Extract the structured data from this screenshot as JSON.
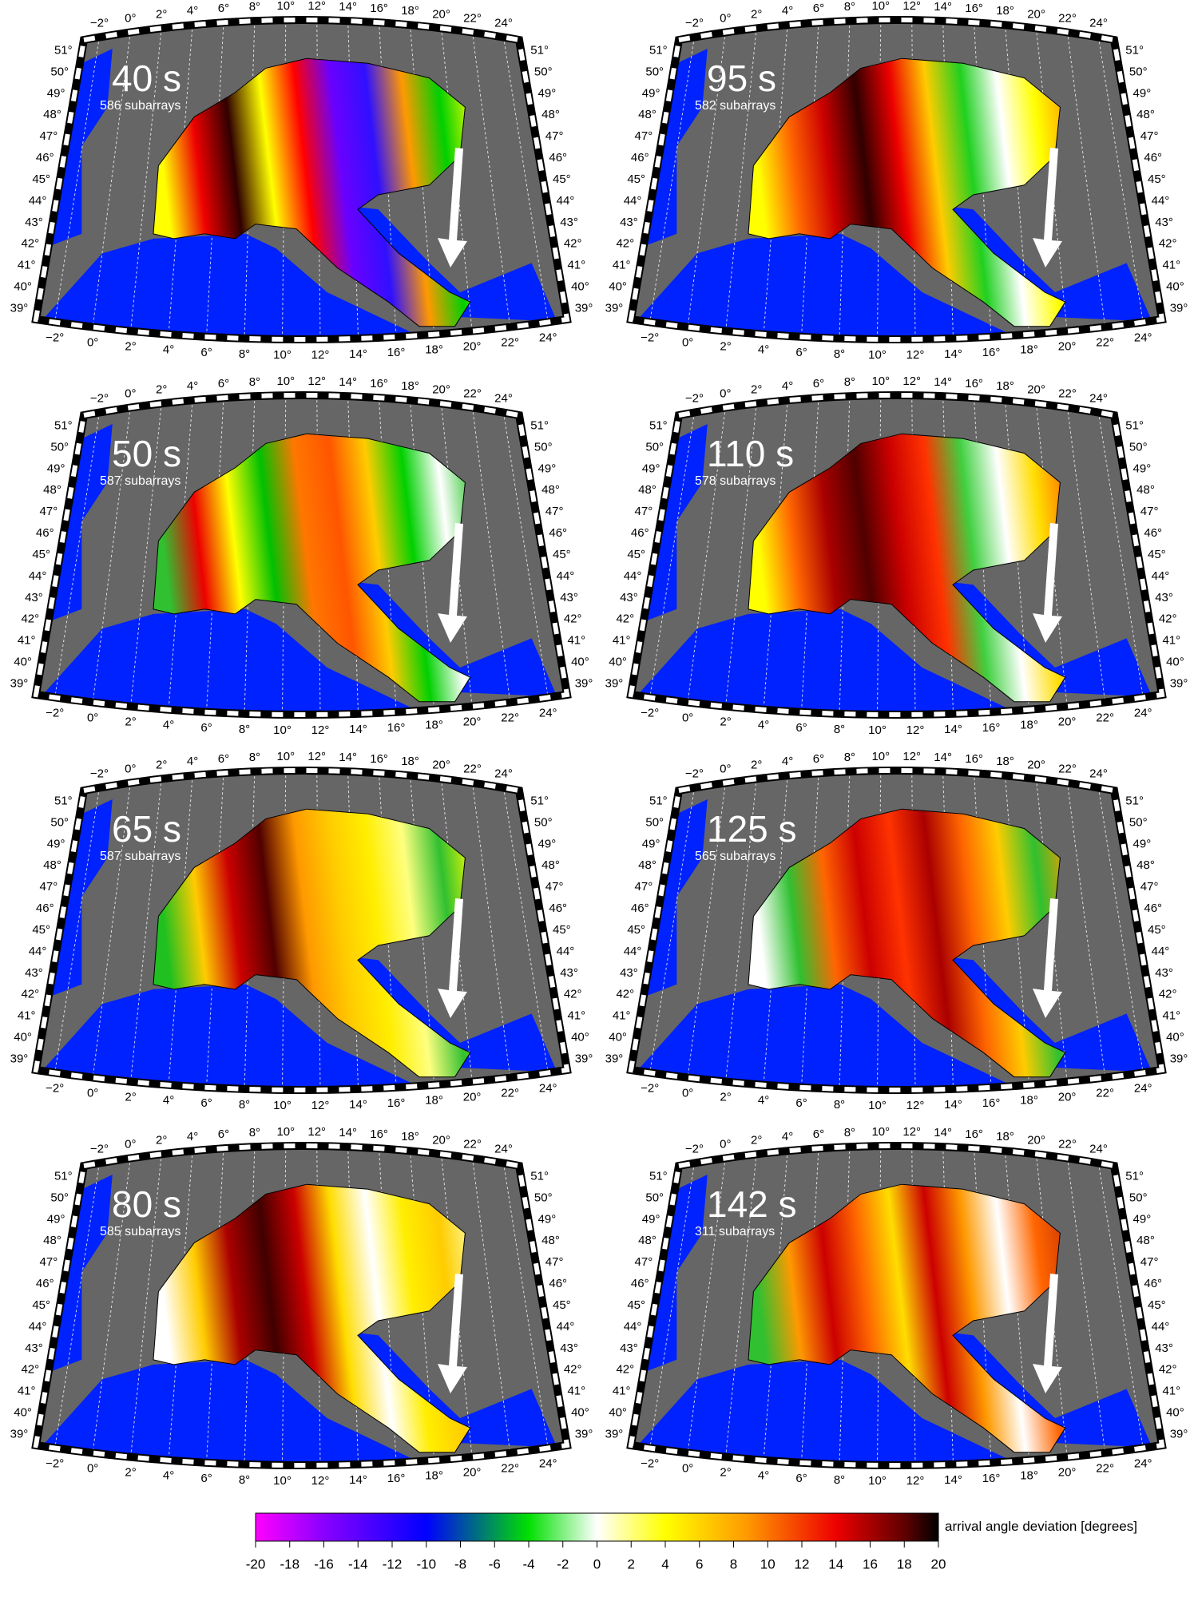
{
  "panels": [
    {
      "period": "40 s",
      "subarrays": "586 subarrays"
    },
    {
      "period": "95 s",
      "subarrays": "582 subarrays"
    },
    {
      "period": "50 s",
      "subarrays": "587 subarrays"
    },
    {
      "period": "110 s",
      "subarrays": "578 subarrays"
    },
    {
      "period": "65 s",
      "subarrays": "587 subarrays"
    },
    {
      "period": "125 s",
      "subarrays": "565 subarrays"
    },
    {
      "period": "80 s",
      "subarrays": "585 subarrays"
    },
    {
      "period": "142 s",
      "subarrays": "311 subarrays"
    }
  ],
  "lon_labels": [
    "−2°",
    "0°",
    "2°",
    "4°",
    "6°",
    "8°",
    "10°",
    "12°",
    "14°",
    "16°",
    "18°",
    "20°",
    "22°",
    "24°"
  ],
  "lat_labels": [
    "51°",
    "50°",
    "49°",
    "48°",
    "47°",
    "46°",
    "45°",
    "44°",
    "43°",
    "42°",
    "41°",
    "40°",
    "39°"
  ],
  "colorbar": {
    "label": "arrival angle deviation [degrees]",
    "lim": [
      -20,
      20
    ],
    "ticks": [
      -20,
      -18,
      -16,
      -14,
      -12,
      -10,
      -8,
      -6,
      -4,
      -2,
      0,
      2,
      4,
      6,
      8,
      10,
      12,
      14,
      16,
      18,
      20
    ]
  }
}
